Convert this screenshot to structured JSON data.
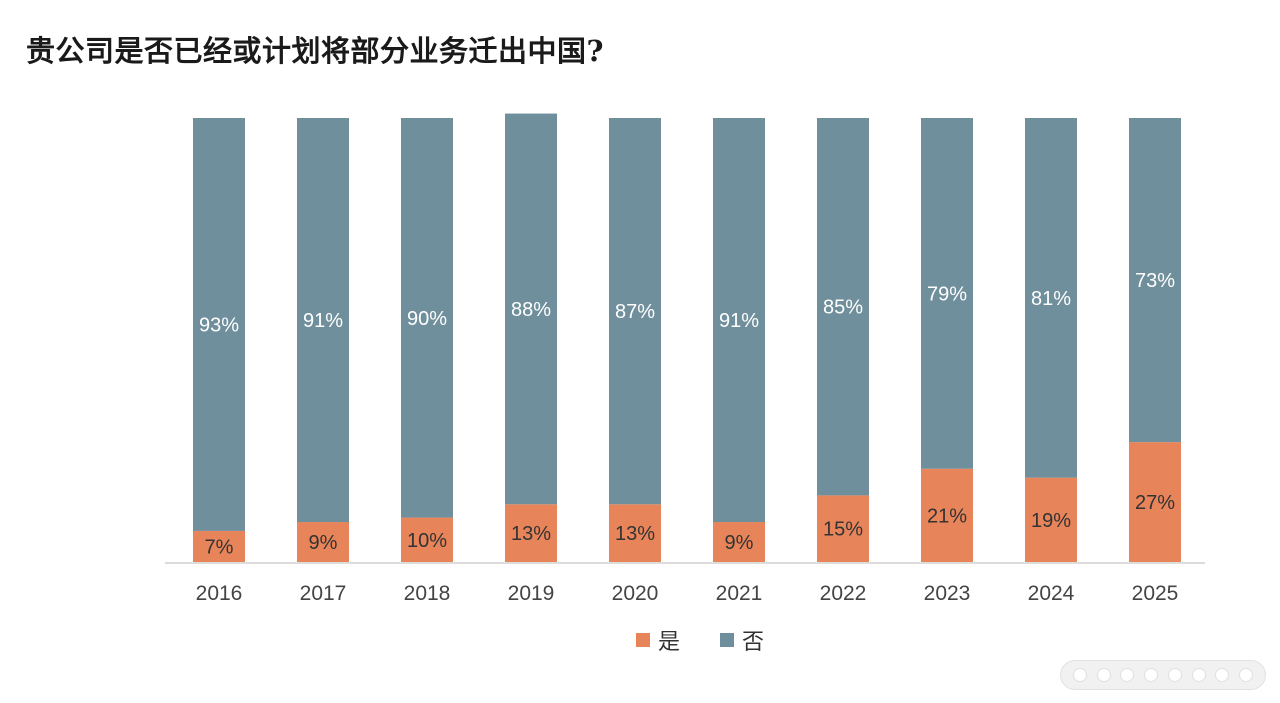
{
  "chart_data": {
    "type": "bar",
    "stacked": true,
    "title": "贵公司是否已经或计划将部分业务迁出中国?",
    "categories": [
      "2016",
      "2017",
      "2018",
      "2019",
      "2020",
      "2021",
      "2022",
      "2023",
      "2024",
      "2025"
    ],
    "series": [
      {
        "name": "是",
        "color": "#e8845a",
        "values": [
          7,
          9,
          10,
          13,
          13,
          9,
          15,
          21,
          19,
          27
        ]
      },
      {
        "name": "否",
        "color": "#708f9c",
        "values": [
          93,
          91,
          90,
          88,
          87,
          91,
          85,
          79,
          81,
          73
        ]
      }
    ],
    "value_suffix": "%",
    "ylim": [
      0,
      100
    ],
    "grid": false,
    "legend_position": "bottom"
  }
}
